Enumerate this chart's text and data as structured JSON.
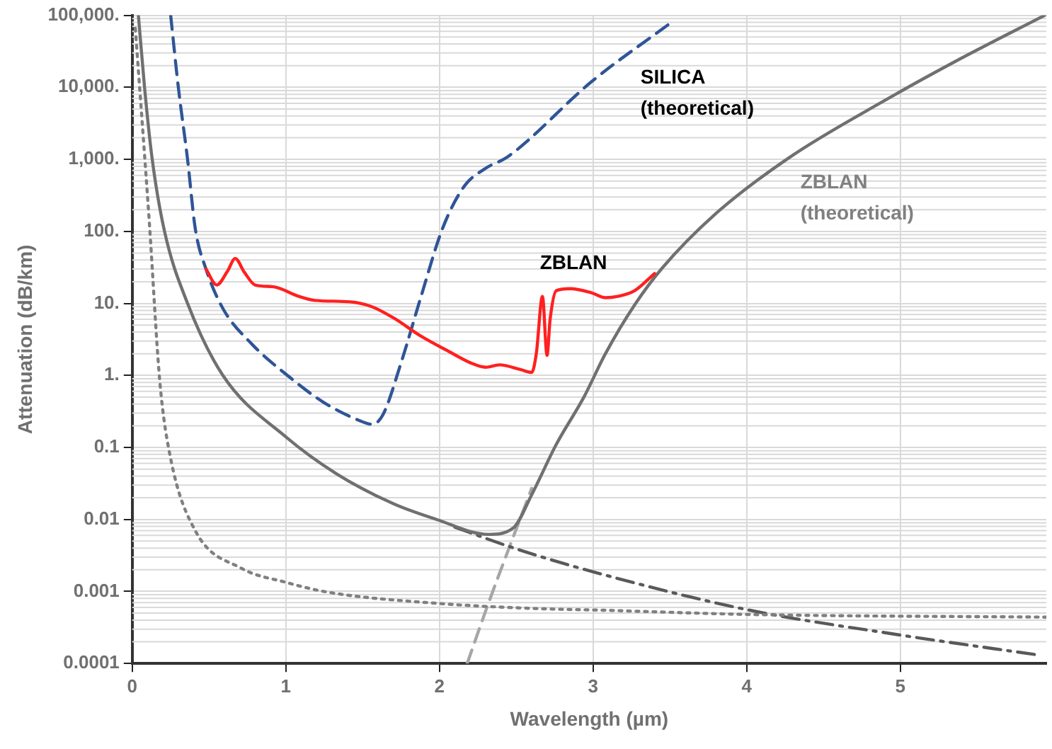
{
  "chart_data": {
    "type": "line",
    "xlabel": "Wavelength (µm)",
    "ylabel": "Attenuation (dB/km)",
    "log": "y",
    "grid": true,
    "legend": false,
    "marker": "none",
    "xlim": [
      0,
      5.95
    ],
    "xticks": [
      0,
      1,
      2,
      3,
      4,
      5
    ],
    "ylim": [
      0.0001,
      100000
    ],
    "yticks": [
      {
        "value": 100000,
        "label": "100,000."
      },
      {
        "value": 10000,
        "label": "10,000."
      },
      {
        "value": 1000,
        "label": "1,000."
      },
      {
        "value": 100,
        "label": "100."
      },
      {
        "value": 10,
        "label": "10."
      },
      {
        "value": 1,
        "label": "1."
      },
      {
        "value": 0.1,
        "label": "0.1"
      },
      {
        "value": 0.01,
        "label": "0.01"
      },
      {
        "value": 0.001,
        "label": "0.001"
      },
      {
        "value": 0.0001,
        "label": "0.0001"
      }
    ],
    "series": [
      {
        "name": "ZBLAN",
        "color": "#ff2020",
        "line_style": "solid",
        "x": [
          0.48,
          0.55,
          0.62,
          0.67,
          0.73,
          0.8,
          0.92,
          1.08,
          1.19,
          1.42,
          1.56,
          1.7,
          1.88,
          2.07,
          2.2,
          2.3,
          2.39,
          2.53,
          2.6,
          2.63,
          2.67,
          2.7,
          2.72,
          2.76,
          2.85,
          2.99,
          3.08,
          3.16,
          3.27,
          3.4
        ],
        "values": [
          30,
          18,
          28,
          42,
          27,
          18,
          17,
          12.6,
          11,
          10.5,
          9,
          6.3,
          3.5,
          2.1,
          1.5,
          1.3,
          1.4,
          1.2,
          1.1,
          2,
          12.5,
          1.9,
          6,
          15,
          16,
          14,
          12,
          12.5,
          15,
          26
        ]
      },
      {
        "name": "SILICA (theoretical)",
        "color": "#2f5597",
        "line_style": "dashed",
        "x": [
          0.25,
          0.3,
          0.36,
          0.41,
          0.48,
          0.59,
          0.78,
          1.01,
          1.24,
          1.47,
          1.56,
          1.63,
          1.75,
          1.88,
          2.02,
          2.16,
          2.3,
          2.44,
          2.99,
          3.52
        ],
        "values": [
          100000,
          10000,
          1000,
          110,
          30,
          8.5,
          2.7,
          1,
          0.43,
          0.24,
          0.21,
          0.28,
          1.5,
          12.5,
          110,
          420,
          750,
          1070,
          12000,
          83000
        ]
      },
      {
        "name": "ZBLAN (theoretical)",
        "color": "#707070",
        "line_style": "solid",
        "x": [
          0.04,
          0.08,
          0.13,
          0.21,
          0.36,
          0.59,
          1,
          1.33,
          1.7,
          1.98,
          2.32,
          2.48,
          2.6,
          2.76,
          2.94,
          3.08,
          3.27,
          3.45,
          3.79,
          4.28,
          4.9,
          5.36,
          5.94
        ],
        "values": [
          100000,
          10000,
          1000,
          100,
          10,
          1,
          0.14,
          0.043,
          0.0165,
          0.01,
          0.0062,
          0.0076,
          0.022,
          0.11,
          0.5,
          2,
          9.5,
          31,
          170,
          1070,
          6600,
          23000,
          100000
        ]
      },
      {
        "color": "#808080",
        "line_style": "dotted",
        "x": [
          0.02,
          0.11,
          0.18,
          0.25,
          0.41,
          0.71,
          1,
          1.27,
          2,
          2.62,
          3.05,
          4,
          5.95
        ],
        "values": [
          66000,
          145,
          0.8,
          0.07,
          0.007,
          0.0021,
          0.00134,
          0.00098,
          0.00068,
          0.00058,
          0.00055,
          0.00048,
          0.00044
        ]
      },
      {
        "color": "#595959",
        "line_style": "dashdot",
        "x": [
          2.1,
          2.5,
          2.99,
          4,
          4.99,
          5.91
        ],
        "values": [
          0.0078,
          0.0039,
          0.0019,
          0.00056,
          0.00025,
          0.00013
        ]
      },
      {
        "color": "#a6a6a6",
        "line_style": "dashed",
        "x": [
          2.18,
          2.32,
          2.6
        ],
        "values": [
          0.0001,
          0.0007,
          0.027
        ]
      }
    ]
  }
}
